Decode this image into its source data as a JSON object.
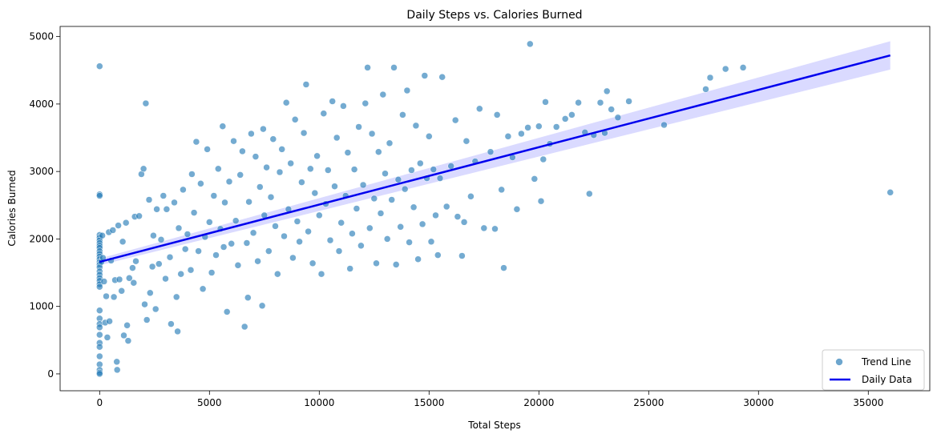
{
  "chart_data": {
    "type": "scatter",
    "title": "Daily Steps vs. Calories Burned",
    "xlabel": "Total Steps",
    "ylabel": "Calories Burned",
    "xlim": [
      -1800,
      37800
    ],
    "ylim": [
      -250,
      5150
    ],
    "xticks": [
      0,
      5000,
      10000,
      15000,
      20000,
      25000,
      30000,
      35000
    ],
    "yticks": [
      0,
      1000,
      2000,
      3000,
      4000,
      5000
    ],
    "grid": false,
    "legend_position": "lower-right",
    "colors": {
      "scatter": "#1f77b4",
      "line": "#0000ee",
      "band": "#bbbbff"
    },
    "series": [
      {
        "name": "Trend Line",
        "kind": "scatter",
        "points": [
          [
            0,
            4560
          ],
          [
            0,
            2660
          ],
          [
            0,
            2640
          ],
          [
            0,
            2060
          ],
          [
            0,
            2020
          ],
          [
            0,
            1980
          ],
          [
            0,
            1940
          ],
          [
            0,
            1900
          ],
          [
            0,
            1870
          ],
          [
            0,
            1820
          ],
          [
            0,
            1780
          ],
          [
            0,
            1740
          ],
          [
            0,
            1700
          ],
          [
            0,
            1660
          ],
          [
            0,
            1620
          ],
          [
            0,
            1580
          ],
          [
            0,
            1520
          ],
          [
            0,
            1470
          ],
          [
            0,
            1420
          ],
          [
            0,
            1380
          ],
          [
            0,
            1330
          ],
          [
            0,
            1290
          ],
          [
            0,
            940
          ],
          [
            0,
            820
          ],
          [
            0,
            740
          ],
          [
            0,
            690
          ],
          [
            0,
            580
          ],
          [
            0,
            460
          ],
          [
            0,
            400
          ],
          [
            0,
            260
          ],
          [
            0,
            140
          ],
          [
            0,
            60
          ],
          [
            0,
            20
          ],
          [
            0,
            0
          ],
          [
            80,
            1660
          ],
          [
            120,
            2050
          ],
          [
            150,
            1720
          ],
          [
            200,
            1370
          ],
          [
            250,
            760
          ],
          [
            300,
            1150
          ],
          [
            350,
            540
          ],
          [
            420,
            2100
          ],
          [
            450,
            780
          ],
          [
            520,
            1680
          ],
          [
            600,
            2130
          ],
          [
            650,
            1140
          ],
          [
            700,
            1390
          ],
          [
            780,
            180
          ],
          [
            800,
            60
          ],
          [
            850,
            2200
          ],
          [
            900,
            1400
          ],
          [
            1000,
            1230
          ],
          [
            1050,
            1960
          ],
          [
            1100,
            570
          ],
          [
            1200,
            2240
          ],
          [
            1250,
            720
          ],
          [
            1300,
            490
          ],
          [
            1350,
            1420
          ],
          [
            1500,
            1570
          ],
          [
            1550,
            1350
          ],
          [
            1600,
            2330
          ],
          [
            1650,
            1670
          ],
          [
            1800,
            2340
          ],
          [
            1900,
            2960
          ],
          [
            2000,
            3040
          ],
          [
            2050,
            1030
          ],
          [
            2100,
            4010
          ],
          [
            2150,
            800
          ],
          [
            2250,
            2580
          ],
          [
            2300,
            1200
          ],
          [
            2400,
            1590
          ],
          [
            2450,
            2050
          ],
          [
            2550,
            960
          ],
          [
            2600,
            2440
          ],
          [
            2700,
            1630
          ],
          [
            2800,
            1990
          ],
          [
            2900,
            2640
          ],
          [
            3000,
            1410
          ],
          [
            3050,
            2440
          ],
          [
            3200,
            1730
          ],
          [
            3250,
            740
          ],
          [
            3400,
            2540
          ],
          [
            3500,
            1140
          ],
          [
            3550,
            630
          ],
          [
            3600,
            2160
          ],
          [
            3700,
            1480
          ],
          [
            3800,
            2730
          ],
          [
            3900,
            1850
          ],
          [
            4000,
            2070
          ],
          [
            4150,
            1540
          ],
          [
            4200,
            2960
          ],
          [
            4300,
            2390
          ],
          [
            4400,
            3440
          ],
          [
            4500,
            1820
          ],
          [
            4600,
            2820
          ],
          [
            4700,
            1260
          ],
          [
            4800,
            2030
          ],
          [
            4900,
            3330
          ],
          [
            5000,
            2250
          ],
          [
            5100,
            1500
          ],
          [
            5200,
            2640
          ],
          [
            5300,
            1760
          ],
          [
            5400,
            3040
          ],
          [
            5500,
            2150
          ],
          [
            5600,
            3670
          ],
          [
            5650,
            1880
          ],
          [
            5700,
            2540
          ],
          [
            5800,
            920
          ],
          [
            5900,
            2850
          ],
          [
            6000,
            1930
          ],
          [
            6100,
            3450
          ],
          [
            6200,
            2270
          ],
          [
            6300,
            1610
          ],
          [
            6400,
            2950
          ],
          [
            6500,
            3300
          ],
          [
            6600,
            700
          ],
          [
            6700,
            1940
          ],
          [
            6750,
            1130
          ],
          [
            6800,
            2550
          ],
          [
            6900,
            3560
          ],
          [
            7000,
            2090
          ],
          [
            7100,
            3220
          ],
          [
            7200,
            1670
          ],
          [
            7300,
            2770
          ],
          [
            7400,
            1010
          ],
          [
            7450,
            3630
          ],
          [
            7500,
            2350
          ],
          [
            7600,
            3060
          ],
          [
            7700,
            1820
          ],
          [
            7800,
            2620
          ],
          [
            7900,
            3480
          ],
          [
            8000,
            2190
          ],
          [
            8100,
            1480
          ],
          [
            8200,
            2990
          ],
          [
            8300,
            3330
          ],
          [
            8400,
            2040
          ],
          [
            8500,
            4020
          ],
          [
            8600,
            2440
          ],
          [
            8700,
            3120
          ],
          [
            8800,
            1720
          ],
          [
            8900,
            3770
          ],
          [
            9000,
            2260
          ],
          [
            9100,
            1960
          ],
          [
            9200,
            2840
          ],
          [
            9300,
            3570
          ],
          [
            9400,
            4290
          ],
          [
            9500,
            2110
          ],
          [
            9600,
            3040
          ],
          [
            9700,
            1640
          ],
          [
            9800,
            2680
          ],
          [
            9900,
            3230
          ],
          [
            10000,
            2350
          ],
          [
            10100,
            1480
          ],
          [
            10200,
            3860
          ],
          [
            10300,
            2520
          ],
          [
            10400,
            3020
          ],
          [
            10500,
            1980
          ],
          [
            10600,
            4040
          ],
          [
            10700,
            2780
          ],
          [
            10800,
            3500
          ],
          [
            10900,
            1820
          ],
          [
            11000,
            2240
          ],
          [
            11100,
            3970
          ],
          [
            11200,
            2640
          ],
          [
            11300,
            3280
          ],
          [
            11400,
            1560
          ],
          [
            11500,
            2080
          ],
          [
            11600,
            3030
          ],
          [
            11700,
            2450
          ],
          [
            11800,
            3660
          ],
          [
            11900,
            1900
          ],
          [
            12000,
            2800
          ],
          [
            12100,
            4010
          ],
          [
            12200,
            4540
          ],
          [
            12300,
            2160
          ],
          [
            12400,
            3560
          ],
          [
            12500,
            2600
          ],
          [
            12600,
            1640
          ],
          [
            12700,
            3290
          ],
          [
            12800,
            2380
          ],
          [
            12900,
            4140
          ],
          [
            13000,
            2970
          ],
          [
            13100,
            2000
          ],
          [
            13200,
            3420
          ],
          [
            13300,
            2580
          ],
          [
            13400,
            4540
          ],
          [
            13500,
            1620
          ],
          [
            13600,
            2880
          ],
          [
            13700,
            2180
          ],
          [
            13800,
            3840
          ],
          [
            13900,
            2740
          ],
          [
            14000,
            4200
          ],
          [
            14100,
            1950
          ],
          [
            14200,
            3020
          ],
          [
            14300,
            2470
          ],
          [
            14400,
            3680
          ],
          [
            14500,
            1700
          ],
          [
            14600,
            3120
          ],
          [
            14700,
            2220
          ],
          [
            14800,
            4420
          ],
          [
            14900,
            2900
          ],
          [
            15000,
            3520
          ],
          [
            15100,
            1960
          ],
          [
            15200,
            3030
          ],
          [
            15300,
            2350
          ],
          [
            15400,
            1760
          ],
          [
            15500,
            2900
          ],
          [
            15600,
            4400
          ],
          [
            15800,
            2480
          ],
          [
            16000,
            3080
          ],
          [
            16200,
            3760
          ],
          [
            16300,
            2330
          ],
          [
            16500,
            1750
          ],
          [
            16600,
            2250
          ],
          [
            16700,
            3450
          ],
          [
            16900,
            2630
          ],
          [
            17100,
            3150
          ],
          [
            17300,
            3930
          ],
          [
            17500,
            2160
          ],
          [
            17800,
            3290
          ],
          [
            18000,
            2150
          ],
          [
            18100,
            3840
          ],
          [
            18300,
            2730
          ],
          [
            18400,
            1570
          ],
          [
            18600,
            3520
          ],
          [
            18800,
            3210
          ],
          [
            19000,
            2440
          ],
          [
            19200,
            3560
          ],
          [
            19500,
            3650
          ],
          [
            19600,
            4890
          ],
          [
            19800,
            2890
          ],
          [
            20000,
            3670
          ],
          [
            20100,
            2560
          ],
          [
            20200,
            3180
          ],
          [
            20300,
            4030
          ],
          [
            20500,
            3410
          ],
          [
            20800,
            3660
          ],
          [
            21200,
            3780
          ],
          [
            21500,
            3840
          ],
          [
            21800,
            4020
          ],
          [
            22100,
            3580
          ],
          [
            22300,
            2670
          ],
          [
            22500,
            3540
          ],
          [
            22800,
            4020
          ],
          [
            23000,
            3570
          ],
          [
            23100,
            4190
          ],
          [
            23300,
            3920
          ],
          [
            23600,
            3800
          ],
          [
            24100,
            4040
          ],
          [
            25700,
            3690
          ],
          [
            27600,
            4220
          ],
          [
            27800,
            4390
          ],
          [
            28500,
            4520
          ],
          [
            29300,
            4540
          ],
          [
            36000,
            2690
          ]
        ]
      },
      {
        "name": "Daily Data",
        "kind": "line",
        "x": [
          0,
          36000
        ],
        "y": [
          1660,
          4720
        ],
        "ci_lower": [
          1610,
          4510
        ],
        "ci_upper": [
          1710,
          4930
        ]
      }
    ]
  }
}
